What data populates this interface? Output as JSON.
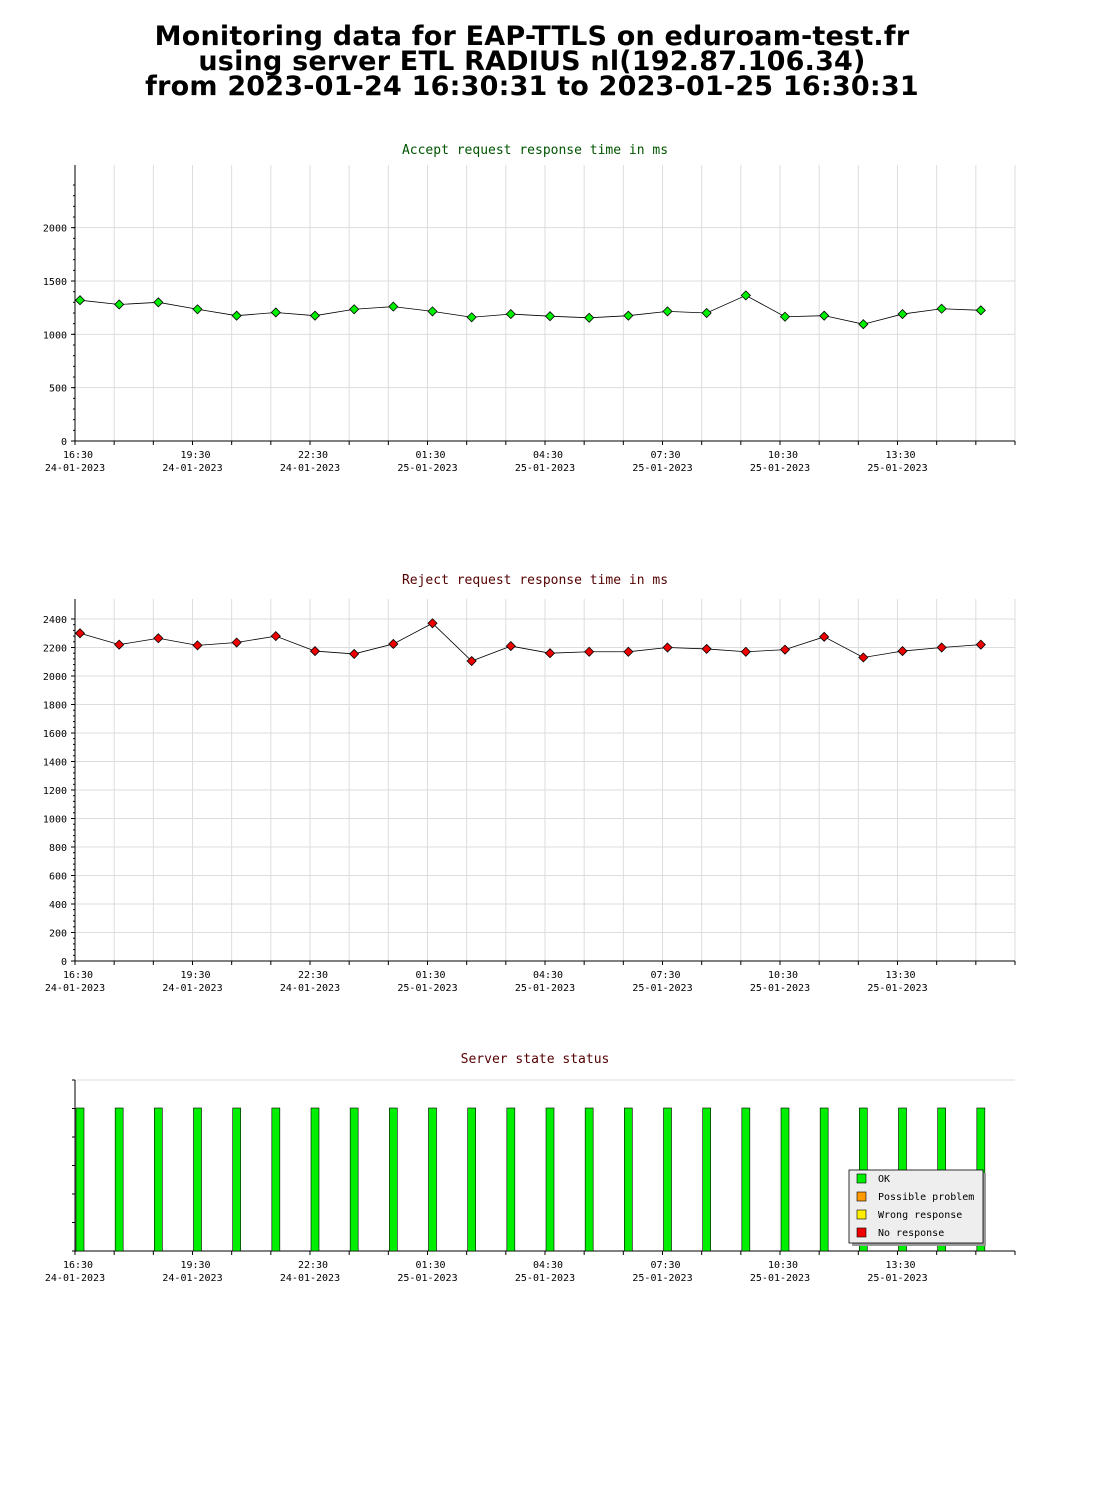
{
  "header": {
    "title_line1": "Monitoring data for EAP-TTLS on eduroam-test.fr",
    "title_line2": "using server ETL RADIUS nl(192.87.106.34)",
    "title_line3": "from 2023-01-24 16:30:31 to 2023-01-25 16:30:31"
  },
  "colors": {
    "accept_marker": "#00ee00",
    "accept_title": "#005500",
    "reject_marker": "#ee0000",
    "reject_title": "#550000",
    "status_title": "#550000",
    "grid": "#dddddd",
    "ok": "#00ee00",
    "possible_problem": "#ff9900",
    "wrong_response": "#ffee00",
    "no_response": "#ee0000"
  },
  "chart_data": [
    {
      "type": "line",
      "title": "Accept request response time in ms",
      "xlabel": "",
      "ylabel": "",
      "x_tick_labels": [
        [
          "16:30",
          "24-01-2023"
        ],
        [
          "19:30",
          "24-01-2023"
        ],
        [
          "22:30",
          "24-01-2023"
        ],
        [
          "01:30",
          "25-01-2023"
        ],
        [
          "04:30",
          "25-01-2023"
        ],
        [
          "07:30",
          "25-01-2023"
        ],
        [
          "10:30",
          "25-01-2023"
        ],
        [
          "13:30",
          "25-01-2023"
        ]
      ],
      "ylim": [
        0,
        2400
      ],
      "y_ticks": [
        0,
        500,
        1000,
        1500,
        2000
      ],
      "grid": true,
      "series": [
        {
          "values": [
            1320,
            1280,
            1300,
            1235,
            1175,
            1205,
            1175,
            1235,
            1260,
            1215,
            1160,
            1190,
            1170,
            1155,
            1175,
            1215,
            1200,
            1365,
            1165,
            1175,
            1095,
            1190,
            1240,
            1225
          ]
        }
      ]
    },
    {
      "type": "line",
      "title": "Reject request response time in ms",
      "xlabel": "",
      "ylabel": "",
      "x_tick_labels": [
        [
          "16:30",
          "24-01-2023"
        ],
        [
          "19:30",
          "24-01-2023"
        ],
        [
          "22:30",
          "24-01-2023"
        ],
        [
          "01:30",
          "25-01-2023"
        ],
        [
          "04:30",
          "25-01-2023"
        ],
        [
          "07:30",
          "25-01-2023"
        ],
        [
          "10:30",
          "25-01-2023"
        ],
        [
          "13:30",
          "25-01-2023"
        ]
      ],
      "ylim": [
        0,
        2400
      ],
      "y_ticks": [
        0,
        200,
        400,
        600,
        800,
        1000,
        1200,
        1400,
        1600,
        1800,
        2000,
        2200,
        2400
      ],
      "grid": true,
      "series": [
        {
          "values": [
            2300,
            2220,
            2265,
            2215,
            2235,
            2280,
            2175,
            2155,
            2225,
            2370,
            2105,
            2210,
            2160,
            2170,
            2170,
            2200,
            2190,
            2170,
            2185,
            2275,
            2130,
            2175,
            2200,
            2220
          ]
        }
      ]
    },
    {
      "type": "bar",
      "title": "Server state status",
      "xlabel": "",
      "ylabel": "",
      "x_tick_labels": [
        [
          "16:30",
          "24-01-2023"
        ],
        [
          "19:30",
          "24-01-2023"
        ],
        [
          "22:30",
          "24-01-2023"
        ],
        [
          "01:30",
          "25-01-2023"
        ],
        [
          "04:30",
          "25-01-2023"
        ],
        [
          "07:30",
          "25-01-2023"
        ],
        [
          "10:30",
          "25-01-2023"
        ],
        [
          "13:30",
          "25-01-2023"
        ]
      ],
      "legend_position": "bottom-right",
      "legend": [
        "OK",
        "Possible problem",
        "Wrong response",
        "No response"
      ],
      "states": [
        "OK",
        "OK",
        "OK",
        "OK",
        "OK",
        "OK",
        "OK",
        "OK",
        "OK",
        "OK",
        "OK",
        "OK",
        "OK",
        "OK",
        "OK",
        "OK",
        "OK",
        "OK",
        "OK",
        "OK",
        "OK",
        "OK",
        "OK",
        "OK"
      ]
    }
  ]
}
